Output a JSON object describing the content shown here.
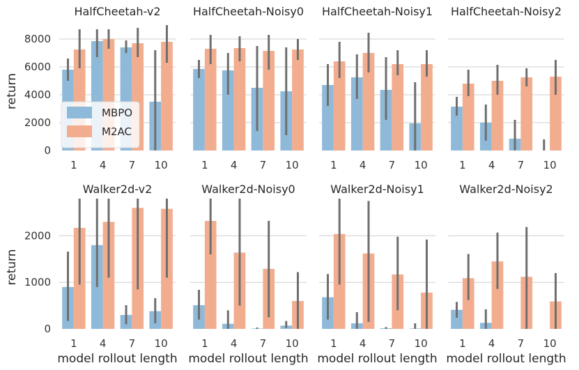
{
  "legend": {
    "entries": [
      {
        "name": "MBPO",
        "color": "#8fb9d8"
      },
      {
        "name": "M2AC",
        "color": "#f2ad8f"
      }
    ]
  },
  "chart_data": [
    {
      "type": "bar",
      "title": "HalfCheetah-v2",
      "categories": [
        "1",
        "4",
        "7",
        "10"
      ],
      "ylabel": "return",
      "xlabel": "",
      "ylim": [
        0,
        9000
      ],
      "yticks": [
        "0",
        "2000",
        "4000",
        "6000",
        "8000"
      ],
      "series": [
        {
          "name": "MBPO",
          "values": [
            5800,
            7850,
            7400,
            3500
          ],
          "ci": [
            [
              5000,
              6600
            ],
            [
              6700,
              8700
            ],
            [
              7000,
              7900
            ],
            [
              0,
              7200
            ]
          ]
        },
        {
          "name": "M2AC",
          "values": [
            7250,
            8000,
            7700,
            7800
          ],
          "ci": [
            [
              5900,
              8700
            ],
            [
              7300,
              8700
            ],
            [
              6700,
              8800
            ],
            [
              6300,
              9000
            ]
          ]
        }
      ]
    },
    {
      "type": "bar",
      "title": "HalfCheetah-Noisy0",
      "categories": [
        "1",
        "4",
        "7",
        "10"
      ],
      "ylabel": "",
      "xlabel": "",
      "ylim": [
        0,
        9000
      ],
      "series": [
        {
          "name": "MBPO",
          "values": [
            5850,
            5750,
            4500,
            4250
          ],
          "ci": [
            [
              5200,
              6500
            ],
            [
              4000,
              7000
            ],
            [
              1400,
              7500
            ],
            [
              1100,
              7400
            ]
          ]
        },
        {
          "name": "M2AC",
          "values": [
            7300,
            7350,
            7150,
            7250
          ],
          "ci": [
            [
              6200,
              8300
            ],
            [
              6400,
              8200
            ],
            [
              5800,
              8300
            ],
            [
              6500,
              8000
            ]
          ]
        }
      ]
    },
    {
      "type": "bar",
      "title": "HalfCheetah-Noisy1",
      "categories": [
        "1",
        "4",
        "7",
        "10"
      ],
      "ylabel": "",
      "xlabel": "",
      "ylim": [
        0,
        9000
      ],
      "series": [
        {
          "name": "MBPO",
          "values": [
            4700,
            5250,
            4350,
            1950
          ],
          "ci": [
            [
              3200,
              6200
            ],
            [
              3700,
              6900
            ],
            [
              2200,
              6700
            ],
            [
              0,
              4900
            ]
          ]
        },
        {
          "name": "M2AC",
          "values": [
            6400,
            7000,
            6200,
            6200
          ],
          "ci": [
            [
              5200,
              7800
            ],
            [
              5600,
              8450
            ],
            [
              5400,
              7200
            ],
            [
              5300,
              7200
            ]
          ]
        }
      ]
    },
    {
      "type": "bar",
      "title": "HalfCheetah-Noisy2",
      "categories": [
        "1",
        "4",
        "7",
        "10"
      ],
      "ylabel": "",
      "xlabel": "",
      "ylim": [
        0,
        9000
      ],
      "series": [
        {
          "name": "MBPO",
          "values": [
            3150,
            2000,
            850,
            0
          ],
          "ci": [
            [
              2500,
              3850
            ],
            [
              700,
              3300
            ],
            [
              0,
              2200
            ],
            [
              0,
              800
            ]
          ]
        },
        {
          "name": "M2AC",
          "values": [
            4800,
            5000,
            5250,
            5300
          ],
          "ci": [
            [
              3900,
              5800
            ],
            [
              4000,
              6150
            ],
            [
              4600,
              5900
            ],
            [
              4000,
              6500
            ]
          ]
        }
      ]
    },
    {
      "type": "bar",
      "title": "Walker2d-v2",
      "categories": [
        "1",
        "4",
        "7",
        "10"
      ],
      "ylabel": "return",
      "xlabel": "model rollout length",
      "ylim": [
        0,
        2800
      ],
      "yticks": [
        "0",
        "1000",
        "2000"
      ],
      "series": [
        {
          "name": "MBPO",
          "values": [
            900,
            1800,
            300,
            380
          ],
          "ci": [
            [
              170,
              1660
            ],
            [
              900,
              2800
            ],
            [
              100,
              510
            ],
            [
              120,
              660
            ]
          ]
        },
        {
          "name": "M2AC",
          "values": [
            2170,
            2300,
            2600,
            2580
          ],
          "ci": [
            [
              950,
              2800
            ],
            [
              1100,
              2800
            ],
            [
              850,
              2800
            ],
            [
              1100,
              2800
            ]
          ]
        }
      ]
    },
    {
      "type": "bar",
      "title": "Walker2d-Noisy0",
      "categories": [
        "1",
        "4",
        "7",
        "10"
      ],
      "ylabel": "",
      "xlabel": "model rollout length",
      "ylim": [
        0,
        2800
      ],
      "series": [
        {
          "name": "MBPO",
          "values": [
            510,
            110,
            10,
            70
          ],
          "ci": [
            [
              200,
              840
            ],
            [
              0,
              400
            ],
            [
              0,
              30
            ],
            [
              20,
              170
            ]
          ]
        },
        {
          "name": "M2AC",
          "values": [
            2320,
            1640,
            1290,
            600
          ],
          "ci": [
            [
              1600,
              2800
            ],
            [
              500,
              2800
            ],
            [
              250,
              2320
            ],
            [
              0,
              1220
            ]
          ]
        }
      ]
    },
    {
      "type": "bar",
      "title": "Walker2d-Noisy1",
      "categories": [
        "1",
        "4",
        "7",
        "10"
      ],
      "ylabel": "",
      "xlabel": "model rollout length",
      "ylim": [
        0,
        2800
      ],
      "series": [
        {
          "name": "MBPO",
          "values": [
            680,
            120,
            15,
            10
          ],
          "ci": [
            [
              200,
              1180
            ],
            [
              0,
              360
            ],
            [
              0,
              40
            ],
            [
              0,
              120
            ]
          ]
        },
        {
          "name": "M2AC",
          "values": [
            2040,
            1620,
            1170,
            780
          ],
          "ci": [
            [
              950,
              2800
            ],
            [
              150,
              2750
            ],
            [
              400,
              1980
            ],
            [
              0,
              1920
            ]
          ]
        }
      ]
    },
    {
      "type": "bar",
      "title": "Walker2d-Noisy2",
      "categories": [
        "1",
        "4",
        "7",
        "10"
      ],
      "ylabel": "",
      "xlabel": "model rollout length",
      "ylim": [
        0,
        2800
      ],
      "series": [
        {
          "name": "MBPO",
          "values": [
            410,
            130,
            0,
            0
          ],
          "ci": [
            [
              240,
              580
            ],
            [
              0,
              420
            ],
            [
              0,
              0
            ],
            [
              0,
              0
            ]
          ]
        },
        {
          "name": "M2AC",
          "values": [
            1090,
            1450,
            1120,
            590
          ],
          "ci": [
            [
              620,
              1610
            ],
            [
              860,
              2070
            ],
            [
              0,
              2190
            ],
            [
              0,
              1200
            ]
          ]
        }
      ]
    }
  ]
}
